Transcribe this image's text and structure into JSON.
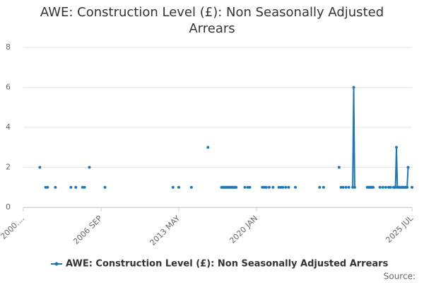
{
  "chart_data": {
    "type": "line",
    "title": "AWE: Construction Level (£): Non Seasonally Adjusted Arrears",
    "source": "Source:",
    "x": [
      17,
      18,
      23,
      24,
      25,
      26,
      33,
      34,
      49,
      50,
      54,
      55,
      61,
      62,
      63,
      64,
      68,
      69,
      84,
      85,
      154,
      155,
      160,
      161,
      173,
      174,
      190,
      191,
      204,
      205,
      206,
      207,
      208,
      209,
      210,
      211,
      212,
      213,
      214,
      215,
      216,
      217,
      218,
      219,
      220,
      228,
      229,
      231,
      232,
      233,
      234,
      246,
      247,
      248,
      249,
      250,
      251,
      253,
      254,
      257,
      258,
      263,
      264,
      265,
      266,
      267,
      268,
      270,
      271,
      273,
      274,
      280,
      281,
      305,
      306,
      309,
      310,
      325,
      326,
      327,
      328,
      329,
      330,
      332,
      333,
      335,
      336,
      339,
      340,
      341,
      342,
      354,
      355,
      356,
      357,
      358,
      359,
      360,
      361,
      367,
      368,
      370,
      371,
      373,
      374,
      376,
      377,
      378,
      379,
      381,
      382,
      383,
      384,
      385,
      386,
      387,
      388,
      389,
      390,
      391,
      392,
      393,
      394,
      395,
      396,
      397,
      400
    ],
    "series": [
      {
        "name": "AWE: Construction Level (£): Non Seasonally Adjusted Arrears",
        "color": "#1f78b4",
        "values": [
          2,
          null,
          1,
          null,
          1,
          null,
          1,
          null,
          1,
          null,
          1,
          null,
          1,
          null,
          1,
          null,
          2,
          null,
          1,
          null,
          1,
          null,
          1,
          null,
          1,
          null,
          3,
          null,
          1,
          1,
          1,
          1,
          1,
          1,
          1,
          1,
          1,
          1,
          1,
          1,
          1,
          1,
          1,
          1,
          null,
          1,
          null,
          1,
          null,
          1,
          null,
          1,
          null,
          1,
          null,
          1,
          null,
          1,
          null,
          1,
          null,
          1,
          null,
          1,
          null,
          1,
          null,
          1,
          null,
          1,
          null,
          1,
          null,
          1,
          null,
          1,
          null,
          2,
          null,
          1,
          null,
          1,
          null,
          1,
          null,
          1,
          null,
          1,
          6,
          1,
          null,
          1,
          1,
          1,
          1,
          1,
          1,
          1,
          null,
          1,
          null,
          1,
          null,
          1,
          null,
          1,
          null,
          1,
          null,
          1,
          1,
          1,
          3,
          1,
          1,
          1,
          1,
          1,
          1,
          1,
          1,
          1,
          1,
          1,
          2,
          null,
          1
        ]
      }
    ],
    "xlim": [
      0,
      400
    ],
    "xticks": [
      {
        "value": 0,
        "label": "2000...."
      },
      {
        "value": 80,
        "label": "2006 SEP"
      },
      {
        "value": 160,
        "label": "2013 MAY"
      },
      {
        "value": 240,
        "label": "2020 JAN"
      },
      {
        "value": 400,
        "label": "2025 JUL"
      }
    ],
    "ylim": [
      0,
      8
    ],
    "yticks": [
      0,
      2,
      4,
      6,
      8
    ],
    "grid": true,
    "legend": "bottom"
  }
}
